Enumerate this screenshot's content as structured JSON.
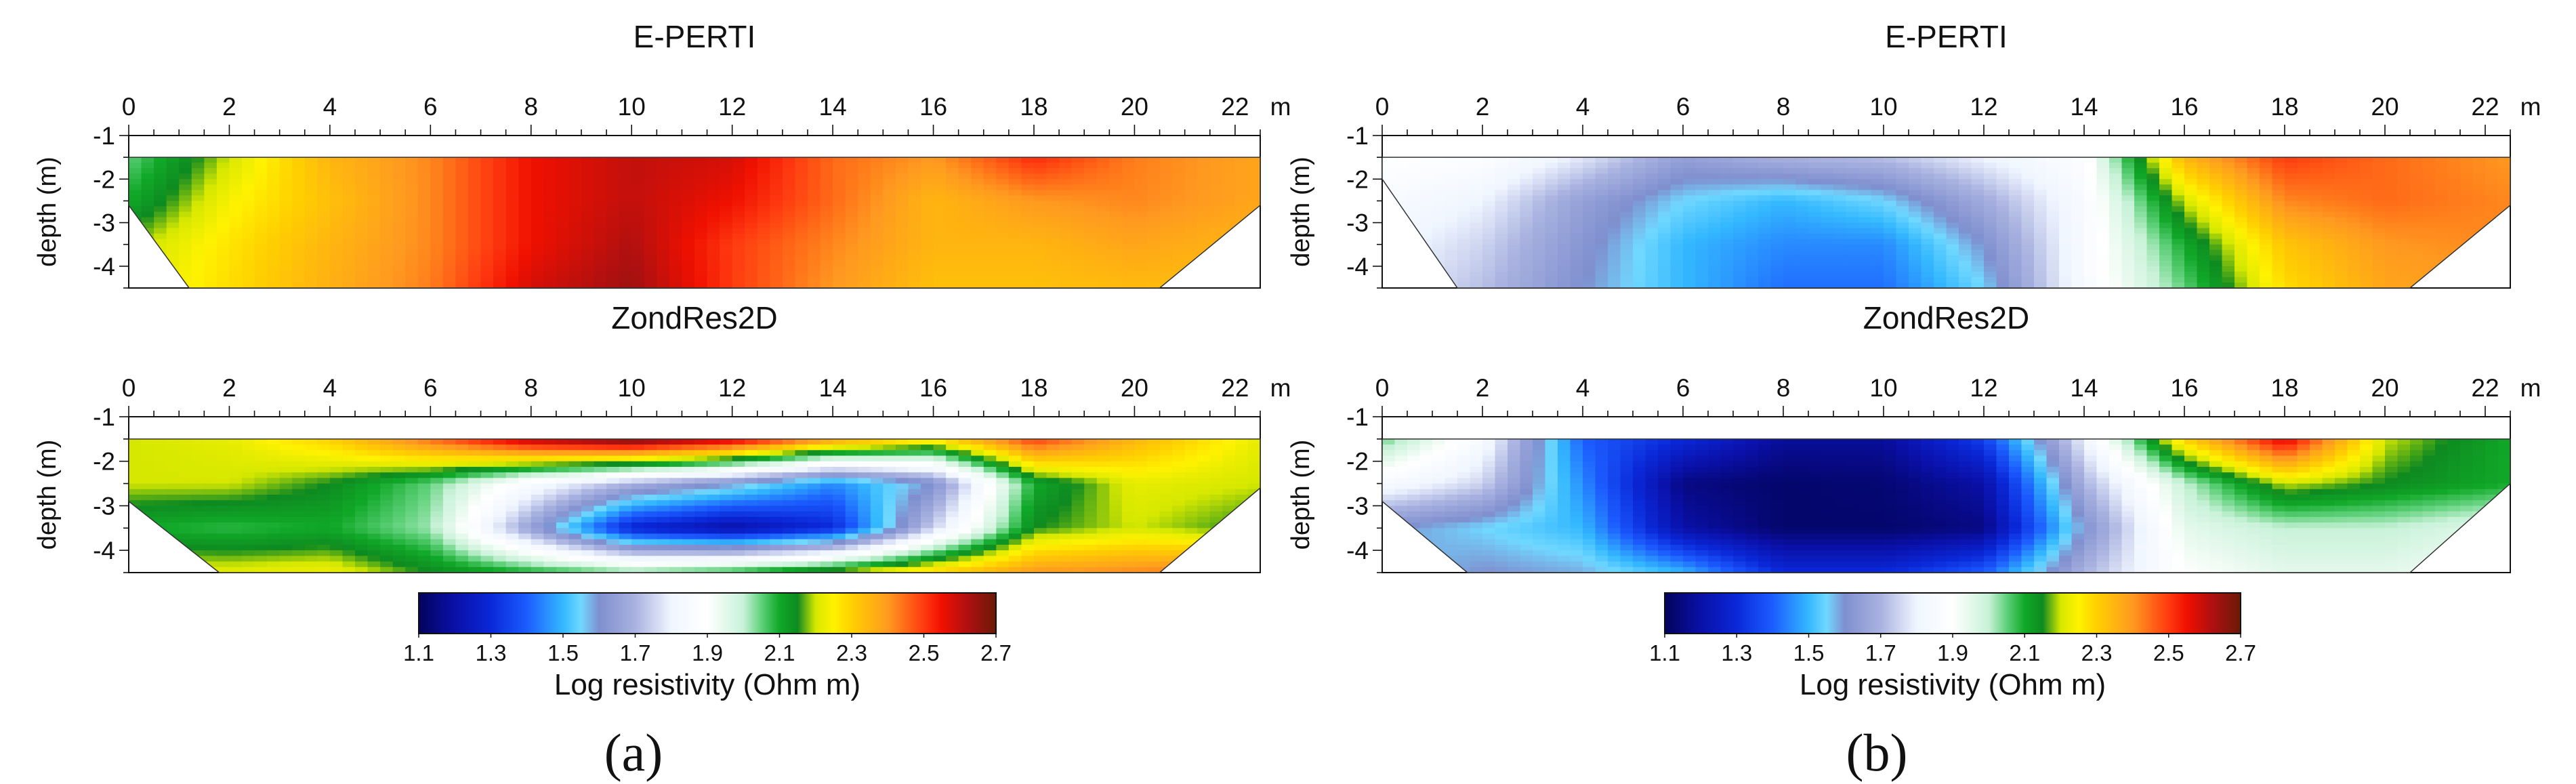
{
  "chart_data": [
    {
      "type": "heatmap",
      "panel": "(a)",
      "plots": [
        {
          "title": "E-PERTI",
          "x_unit": "m",
          "ylabel": "depth (m)",
          "xlim": [
            0,
            22.5
          ],
          "ylim": [
            -4.5,
            -1
          ],
          "x_ticks": [
            "0",
            "2",
            "4",
            "6",
            "8",
            "10",
            "12",
            "14",
            "16",
            "18",
            "20",
            "22"
          ],
          "y_ticks": [
            "-1",
            "-2",
            "-3",
            "-4"
          ],
          "data_top": -1.5,
          "data_bottom": -4.5,
          "left_edge": [
            [
              0,
              -1.5
            ],
            [
              0,
              -2.6
            ],
            [
              1.2,
              -4.5
            ]
          ],
          "right_edge": [
            [
              22.5,
              -1.5
            ],
            [
              22.5,
              -2.6
            ],
            [
              20.5,
              -4.5
            ]
          ],
          "x_points": [
            0,
            2,
            4,
            6,
            8,
            10,
            12,
            14,
            16,
            18,
            20,
            22.5
          ],
          "depth_points": [
            -1.5,
            -2.5,
            -3.5,
            -4.5
          ],
          "values": [
            [
              2.05,
              2.2,
              2.35,
              2.42,
              2.55,
              2.6,
              2.58,
              2.45,
              2.4,
              2.52,
              2.43,
              2.38
            ],
            [
              2.1,
              2.24,
              2.33,
              2.42,
              2.55,
              2.6,
              2.55,
              2.45,
              2.35,
              2.4,
              2.42,
              2.38
            ],
            [
              2.18,
              2.27,
              2.35,
              2.42,
              2.55,
              2.62,
              2.5,
              2.42,
              2.35,
              2.35,
              2.38,
              2.35
            ],
            [
              2.2,
              2.28,
              2.36,
              2.43,
              2.58,
              2.64,
              2.5,
              2.4,
              2.33,
              2.33,
              2.34,
              2.33
            ]
          ]
        },
        {
          "title": "ZondRes2D",
          "x_unit": "m",
          "ylabel": "depth (m)",
          "xlim": [
            0,
            22.5
          ],
          "ylim": [
            -4.5,
            -1
          ],
          "x_ticks": [
            "0",
            "2",
            "4",
            "6",
            "8",
            "10",
            "12",
            "14",
            "16",
            "18",
            "20",
            "22"
          ],
          "y_ticks": [
            "-1",
            "-2",
            "-3",
            "-4"
          ],
          "data_top": -1.5,
          "data_bottom": -4.5,
          "left_edge": [
            [
              0,
              -1.5
            ],
            [
              0,
              -2.9
            ],
            [
              1.8,
              -4.5
            ]
          ],
          "right_edge": [
            [
              22.5,
              -1.5
            ],
            [
              22.5,
              -2.6
            ],
            [
              20.5,
              -4.5
            ]
          ],
          "x_points": [
            0,
            2,
            4,
            6,
            8,
            10,
            12,
            14,
            16,
            18,
            20,
            22.5
          ],
          "depth_points": [
            -1.5,
            -2.5,
            -3.5,
            -4.5
          ],
          "values": [
            [
              2.2,
              2.22,
              2.3,
              2.45,
              2.62,
              2.7,
              2.6,
              2.4,
              2.28,
              2.5,
              2.35,
              2.22
            ],
            [
              2.2,
              2.2,
              2.15,
              2.05,
              1.85,
              1.7,
              1.6,
              1.45,
              1.6,
              2.1,
              2.22,
              2.2
            ],
            [
              2.1,
              2.08,
              2.1,
              2.02,
              1.65,
              1.28,
              1.2,
              1.3,
              1.75,
              2.15,
              2.2,
              2.15
            ],
            [
              2.22,
              2.22,
              2.23,
              2.15,
              2.1,
              2.05,
              2.1,
              2.2,
              2.3,
              2.4,
              2.42,
              2.45
            ]
          ]
        }
      ]
    },
    {
      "type": "heatmap",
      "panel": "(b)",
      "plots": [
        {
          "title": "E-PERTI",
          "x_unit": "m",
          "ylabel": "depth (m)",
          "xlim": [
            0,
            22.5
          ],
          "ylim": [
            -4.5,
            -1
          ],
          "x_ticks": [
            "0",
            "2",
            "4",
            "6",
            "8",
            "10",
            "12",
            "14",
            "16",
            "18",
            "20",
            "22"
          ],
          "y_ticks": [
            "-1",
            "-2",
            "-3",
            "-4"
          ],
          "data_top": -1.5,
          "data_bottom": -4.5,
          "left_edge": [
            [
              0,
              -1.5
            ],
            [
              0,
              -2.0
            ],
            [
              1.5,
              -4.5
            ]
          ],
          "right_edge": [
            [
              22.5,
              -1.5
            ],
            [
              22.5,
              -2.6
            ],
            [
              20.5,
              -4.5
            ]
          ],
          "x_points": [
            0,
            2,
            4,
            6,
            8,
            10,
            12,
            14,
            16,
            18,
            20,
            22.5
          ],
          "depth_points": [
            -1.5,
            -2.5,
            -3.5,
            -4.5
          ],
          "values": [
            [
              1.9,
              1.88,
              1.78,
              1.65,
              1.7,
              1.72,
              1.8,
              1.88,
              2.35,
              2.5,
              2.45,
              2.4
            ],
            [
              1.85,
              1.8,
              1.65,
              1.55,
              1.5,
              1.55,
              1.68,
              1.85,
              2.2,
              2.42,
              2.45,
              2.42
            ],
            [
              1.82,
              1.75,
              1.62,
              1.5,
              1.45,
              1.45,
              1.6,
              1.85,
              2.1,
              2.32,
              2.4,
              2.42
            ],
            [
              1.8,
              1.72,
              1.6,
              1.5,
              1.42,
              1.42,
              1.55,
              1.85,
              2.05,
              2.28,
              2.38,
              2.4
            ]
          ]
        },
        {
          "title": "ZondRes2D",
          "x_unit": "m",
          "ylabel": "depth (m)",
          "xlim": [
            0,
            22.5
          ],
          "ylim": [
            -4.5,
            -1
          ],
          "x_ticks": [
            "0",
            "2",
            "4",
            "6",
            "8",
            "10",
            "12",
            "14",
            "16",
            "18",
            "20",
            "22"
          ],
          "y_ticks": [
            "-1",
            "-2",
            "-3",
            "-4"
          ],
          "data_top": -1.5,
          "data_bottom": -4.5,
          "left_edge": [
            [
              0,
              -1.5
            ],
            [
              0,
              -2.9
            ],
            [
              1.7,
              -4.5
            ]
          ],
          "right_edge": [
            [
              22.5,
              -1.5
            ],
            [
              22.5,
              -2.5
            ],
            [
              20.5,
              -4.5
            ]
          ],
          "x_points": [
            0,
            2,
            4,
            6,
            8,
            10,
            12,
            14,
            16,
            18,
            20,
            22.5
          ],
          "depth_points": [
            -1.5,
            -2.5,
            -3.5,
            -4.5
          ],
          "values": [
            [
              2.05,
              1.85,
              1.4,
              1.3,
              1.18,
              1.18,
              1.35,
              1.8,
              2.3,
              2.58,
              2.2,
              2.1
            ],
            [
              1.85,
              1.75,
              1.45,
              1.15,
              1.12,
              1.13,
              1.2,
              1.7,
              2.0,
              2.2,
              2.15,
              2.1
            ],
            [
              1.6,
              1.55,
              1.5,
              1.2,
              1.12,
              1.12,
              1.15,
              1.6,
              1.95,
              2.0,
              2.0,
              1.95
            ],
            [
              1.55,
              1.6,
              1.58,
              1.5,
              1.3,
              1.3,
              1.4,
              1.7,
              1.9,
              1.95,
              1.95,
              1.9
            ]
          ]
        }
      ]
    }
  ],
  "colorbar": {
    "label": "Log resistivity (Ohm m)",
    "ticks": [
      "1.1",
      "1.3",
      "1.5",
      "1.7",
      "1.9",
      "2.1",
      "2.3",
      "2.5",
      "2.7"
    ],
    "range": [
      1.1,
      2.7
    ],
    "stops": [
      [
        1.1,
        "#03035c"
      ],
      [
        1.2,
        "#0a10a8"
      ],
      [
        1.3,
        "#0a28d8"
      ],
      [
        1.4,
        "#1c5cff"
      ],
      [
        1.5,
        "#34b8ff"
      ],
      [
        1.55,
        "#70d8ff"
      ],
      [
        1.6,
        "#7f8fcf"
      ],
      [
        1.7,
        "#a9b2e0"
      ],
      [
        1.8,
        "#f0f6ff"
      ],
      [
        1.9,
        "#ffffff"
      ],
      [
        2.0,
        "#c8f2d8"
      ],
      [
        2.05,
        "#5fd17a"
      ],
      [
        2.1,
        "#10a828"
      ],
      [
        2.15,
        "#0e8a20"
      ],
      [
        2.2,
        "#d6e800"
      ],
      [
        2.25,
        "#fff200"
      ],
      [
        2.3,
        "#ffd000"
      ],
      [
        2.4,
        "#ff9a20"
      ],
      [
        2.5,
        "#ff3a10"
      ],
      [
        2.55,
        "#f01000"
      ],
      [
        2.62,
        "#b01010"
      ],
      [
        2.7,
        "#6a1a08"
      ]
    ]
  },
  "panel_labels": [
    "(a)",
    "(b)"
  ]
}
